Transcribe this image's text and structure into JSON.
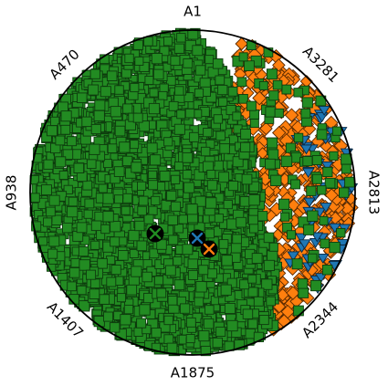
{
  "chart_data": {
    "type": "scatter",
    "projection": "radial",
    "anchors": [
      "A1",
      "A3281",
      "A2813",
      "A2344",
      "A1875",
      "A1407",
      "A938",
      "A470"
    ],
    "series": [
      {
        "marker": "square",
        "color": "#228b22",
        "edge": "#0d3a0d",
        "approx_count": 4500,
        "concentration": "left and center of the disk"
      },
      {
        "marker": "diamond",
        "color": "#ff7f0e",
        "edge": "#5a2a00",
        "approx_count": 420,
        "concentration": "right side, near A2813 and A2344"
      },
      {
        "marker": "triangle-down",
        "color": "#1f77b4",
        "edge": "#0a2a45",
        "approx_count": 60,
        "concentration": "upper-right rim, near A2813"
      }
    ],
    "centroids": [
      {
        "marker": "x",
        "color": "#228b22",
        "position": "left of center"
      },
      {
        "marker": "x",
        "color": "#1f77b4",
        "position": "slightly right of center"
      },
      {
        "marker": "x",
        "color": "#ff7f0e",
        "position": "right of center, just below the blue centroid"
      }
    ],
    "grid": false,
    "legend": "none"
  }
}
